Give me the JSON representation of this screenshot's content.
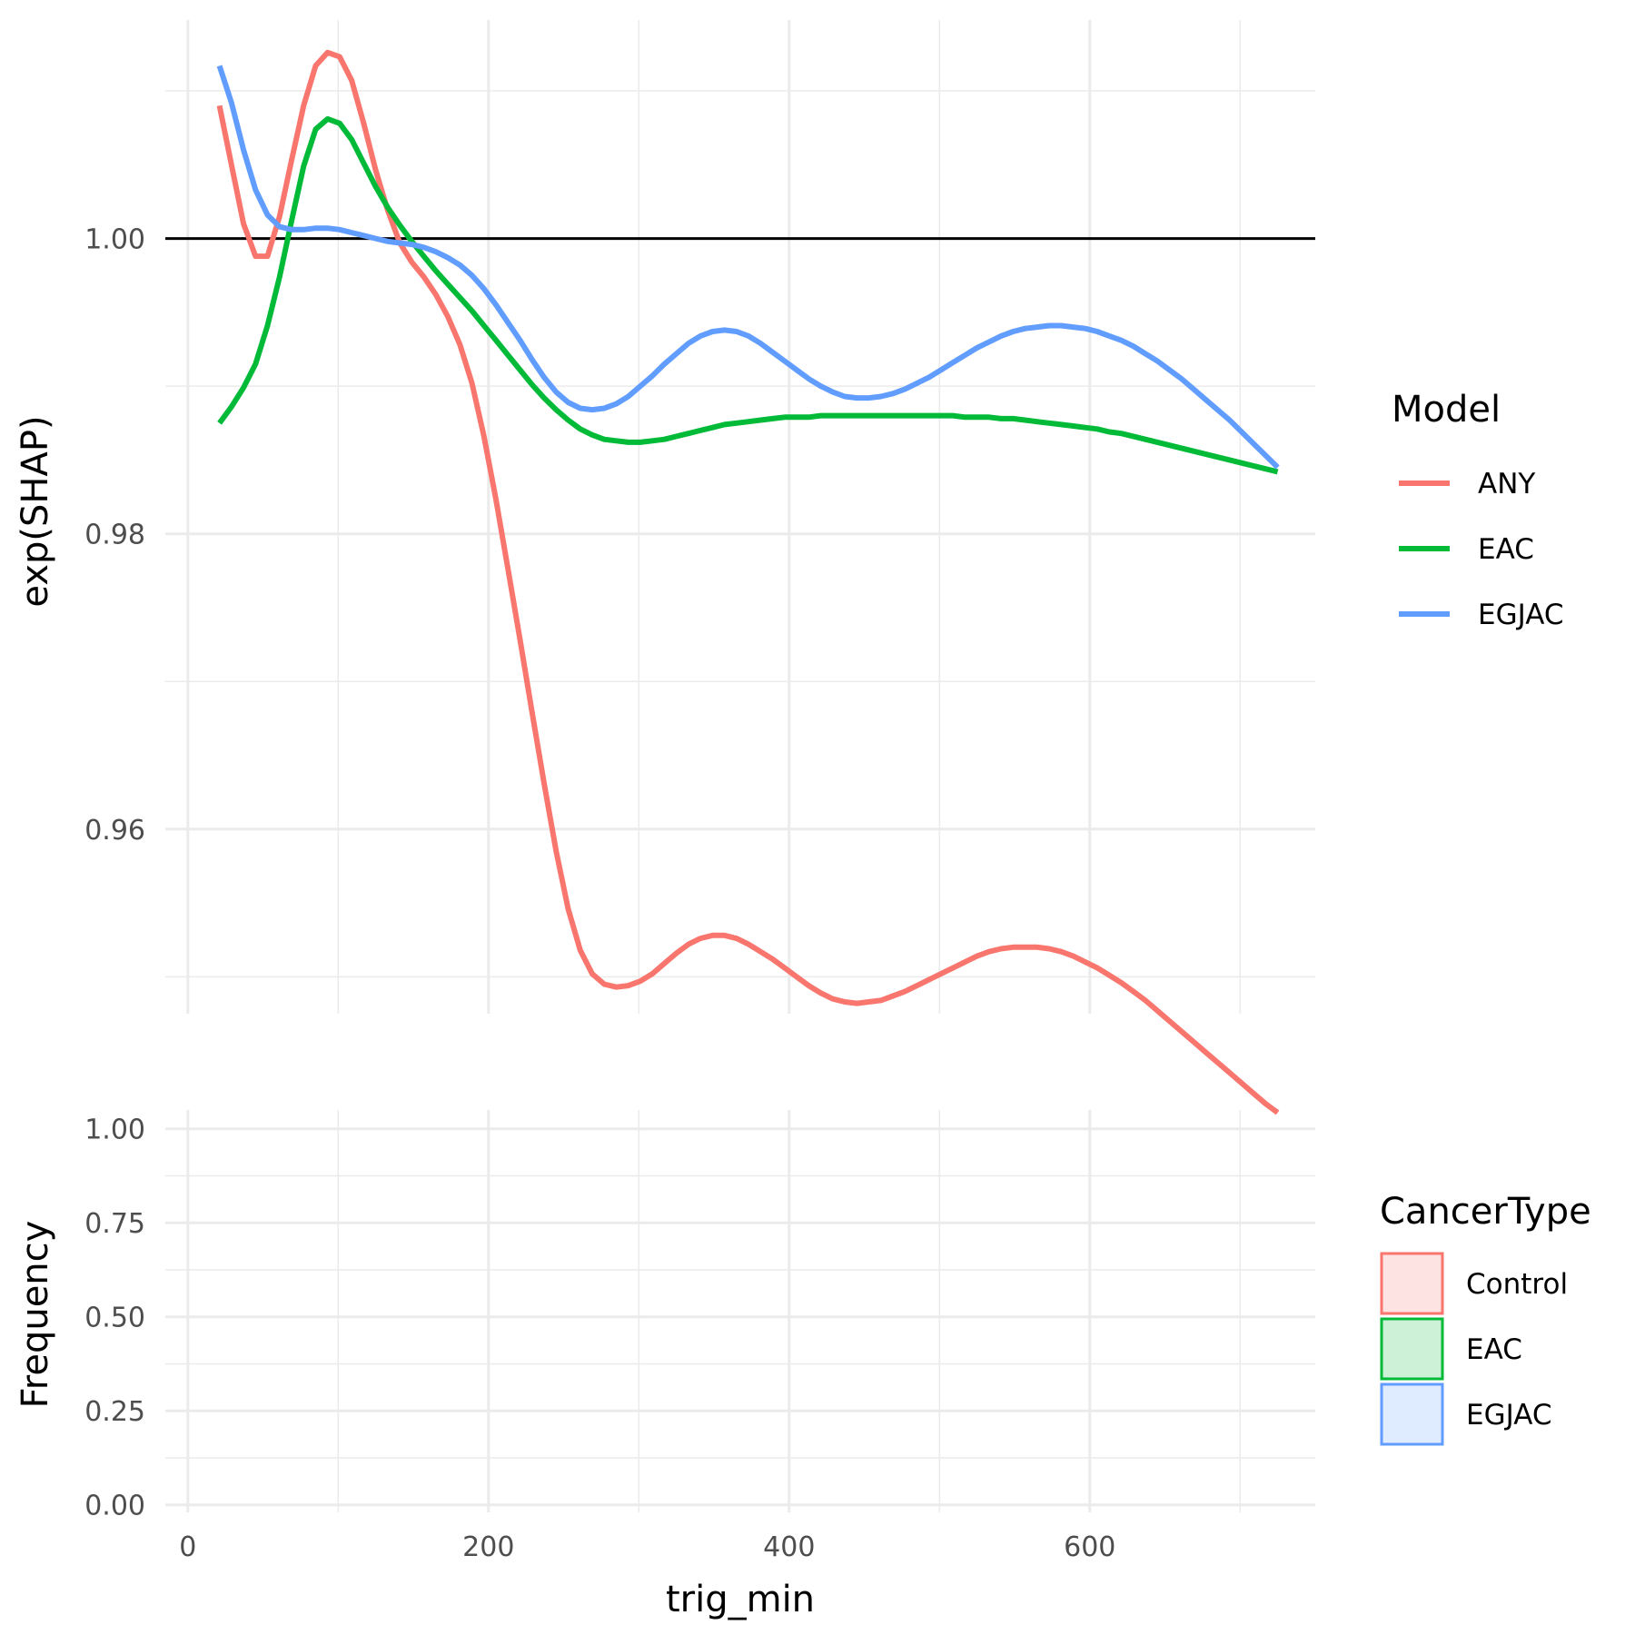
{
  "chart_data": [
    {
      "type": "line",
      "xlabel": "",
      "ylabel": "exp(SHAP)",
      "xlim": [
        -15,
        750
      ],
      "ylim": [
        0.9475,
        1.0148
      ],
      "x_major_ticks": [
        0,
        200,
        400,
        600
      ],
      "x_minor_ticks": [
        100,
        300,
        500,
        700
      ],
      "y_major_ticks": [
        0.96,
        0.98,
        1.0
      ],
      "y_tick_labels": [
        "0.96",
        "0.98",
        "1.00"
      ],
      "y_minor_ticks": [
        0.95,
        0.97,
        0.99,
        1.01
      ],
      "reference_line": 1.0,
      "grid": true,
      "legend": {
        "title": "Model",
        "position": "right"
      },
      "series": [
        {
          "name": "ANY",
          "color": "#F8766D",
          "x": [
            21,
            29,
            37,
            45,
            53,
            61,
            69,
            77,
            85,
            93,
            101,
            109,
            117,
            125,
            133,
            141,
            149,
            157,
            165,
            173,
            181,
            189,
            197,
            205,
            213,
            221,
            229,
            237,
            245,
            253,
            261,
            269,
            277,
            285,
            293,
            301,
            309,
            317,
            325,
            333,
            341,
            349,
            357,
            365,
            373,
            381,
            389,
            397,
            405,
            413,
            421,
            429,
            437,
            445,
            453,
            461,
            469,
            477,
            485,
            493,
            501,
            509,
            517,
            525,
            533,
            541,
            549,
            557,
            565,
            573,
            581,
            589,
            597,
            605,
            613,
            621,
            629,
            637,
            645,
            653,
            661,
            669,
            677,
            685,
            693,
            701,
            709,
            717,
            725
          ],
          "y": [
            1.009,
            1.005,
            1.001,
            0.9988,
            0.9988,
            1.0015,
            1.0053,
            1.009,
            1.0117,
            1.0126,
            1.0123,
            1.0107,
            1.0078,
            1.0046,
            1.0019,
            0.9997,
            0.9984,
            0.9974,
            0.9962,
            0.9947,
            0.9928,
            0.9902,
            0.9866,
            0.9823,
            0.9776,
            0.9728,
            0.9679,
            0.9631,
            0.9585,
            0.9546,
            0.9518,
            0.9502,
            0.9495,
            0.9493,
            0.9494,
            0.9497,
            0.9502,
            0.9509,
            0.9516,
            0.9522,
            0.9526,
            0.9528,
            0.9528,
            0.9526,
            0.9522,
            0.9517,
            0.9512,
            0.9506,
            0.95,
            0.9494,
            0.9489,
            0.9485,
            0.9483,
            0.9482,
            0.9483,
            0.9484,
            0.9487,
            0.949,
            0.9494,
            0.9498,
            0.9502,
            0.9506,
            0.951,
            0.9514,
            0.9517,
            0.9519,
            0.952,
            0.952,
            0.952,
            0.9519,
            0.9517,
            0.9514,
            0.951,
            0.9506,
            0.9501,
            0.9496,
            0.949,
            0.9484,
            0.9477,
            0.947,
            0.9463,
            0.9456,
            0.9449,
            0.9442,
            0.9435,
            0.9428,
            0.9421,
            0.9414,
            0.9408
          ]
        },
        {
          "name": "EAC",
          "color": "#00BA38",
          "x": [
            21,
            29,
            37,
            45,
            53,
            61,
            69,
            77,
            85,
            93,
            101,
            109,
            117,
            125,
            133,
            141,
            149,
            157,
            165,
            173,
            181,
            189,
            197,
            205,
            213,
            221,
            229,
            237,
            245,
            253,
            261,
            269,
            277,
            285,
            293,
            301,
            309,
            317,
            325,
            333,
            341,
            349,
            357,
            365,
            373,
            381,
            389,
            397,
            405,
            413,
            421,
            429,
            437,
            445,
            453,
            461,
            469,
            477,
            485,
            493,
            501,
            509,
            517,
            525,
            533,
            541,
            549,
            557,
            565,
            573,
            581,
            589,
            597,
            605,
            613,
            621,
            629,
            637,
            645,
            653,
            661,
            669,
            677,
            685,
            693,
            701,
            709,
            717,
            725
          ],
          "y": [
            0.9875,
            0.9886,
            0.9899,
            0.9915,
            0.9941,
            0.9974,
            1.0012,
            1.0049,
            1.0074,
            1.0081,
            1.0078,
            1.0067,
            1.0051,
            1.0035,
            1.0021,
            1.0009,
            0.9998,
            0.9988,
            0.9978,
            0.9969,
            0.996,
            0.9951,
            0.9941,
            0.9931,
            0.9921,
            0.9911,
            0.9901,
            0.9892,
            0.9884,
            0.9877,
            0.9871,
            0.9867,
            0.9864,
            0.9863,
            0.9862,
            0.9862,
            0.9863,
            0.9864,
            0.9866,
            0.9868,
            0.987,
            0.9872,
            0.9874,
            0.9875,
            0.9876,
            0.9877,
            0.9878,
            0.9879,
            0.9879,
            0.9879,
            0.988,
            0.988,
            0.988,
            0.988,
            0.988,
            0.988,
            0.988,
            0.988,
            0.988,
            0.988,
            0.988,
            0.988,
            0.9879,
            0.9879,
            0.9879,
            0.9878,
            0.9878,
            0.9877,
            0.9876,
            0.9875,
            0.9874,
            0.9873,
            0.9872,
            0.9871,
            0.9869,
            0.9868,
            0.9866,
            0.9864,
            0.9862,
            0.986,
            0.9858,
            0.9856,
            0.9854,
            0.9852,
            0.985,
            0.9848,
            0.9846,
            0.9844,
            0.9842
          ]
        },
        {
          "name": "EGJAC",
          "color": "#619CFF",
          "x": [
            21,
            29,
            37,
            45,
            53,
            61,
            69,
            77,
            85,
            93,
            101,
            109,
            117,
            125,
            133,
            141,
            149,
            157,
            165,
            173,
            181,
            189,
            197,
            205,
            213,
            221,
            229,
            237,
            245,
            253,
            261,
            269,
            277,
            285,
            293,
            301,
            309,
            317,
            325,
            333,
            341,
            349,
            357,
            365,
            373,
            381,
            389,
            397,
            405,
            413,
            421,
            429,
            437,
            445,
            453,
            461,
            469,
            477,
            485,
            493,
            501,
            509,
            517,
            525,
            533,
            541,
            549,
            557,
            565,
            573,
            581,
            589,
            597,
            605,
            613,
            621,
            629,
            637,
            645,
            653,
            661,
            669,
            677,
            685,
            693,
            701,
            709,
            717,
            725
          ],
          "y": [
            1.0117,
            1.0092,
            1.006,
            1.0033,
            1.0016,
            1.0008,
            1.0006,
            1.0006,
            1.0007,
            1.0007,
            1.0006,
            1.0004,
            1.0002,
            1.0,
            0.9998,
            0.9997,
            0.9996,
            0.9994,
            0.9991,
            0.9987,
            0.9982,
            0.9975,
            0.9966,
            0.9955,
            0.9943,
            0.9931,
            0.9918,
            0.9906,
            0.9896,
            0.9889,
            0.9885,
            0.9884,
            0.9885,
            0.9888,
            0.9893,
            0.99,
            0.9907,
            0.9915,
            0.9922,
            0.9929,
            0.9934,
            0.9937,
            0.9938,
            0.9937,
            0.9934,
            0.9929,
            0.9923,
            0.9917,
            0.9911,
            0.9905,
            0.99,
            0.9896,
            0.9893,
            0.9892,
            0.9892,
            0.9893,
            0.9895,
            0.9898,
            0.9902,
            0.9906,
            0.9911,
            0.9916,
            0.9921,
            0.9926,
            0.993,
            0.9934,
            0.9937,
            0.9939,
            0.994,
            0.9941,
            0.9941,
            0.994,
            0.9939,
            0.9937,
            0.9934,
            0.9931,
            0.9927,
            0.9922,
            0.9917,
            0.9911,
            0.9905,
            0.9898,
            0.9891,
            0.9884,
            0.9877,
            0.9869,
            0.9861,
            0.9853,
            0.9845
          ]
        }
      ]
    },
    {
      "type": "bar",
      "xlabel": "trig_min",
      "ylabel": "Frequency",
      "xlim": [
        -15,
        750
      ],
      "ylim": [
        -0.02,
        1.05
      ],
      "x_major_ticks": [
        0,
        200,
        400,
        600
      ],
      "x_tick_labels": [
        "0",
        "200",
        "400",
        "600"
      ],
      "x_minor_ticks": [
        100,
        300,
        500,
        700
      ],
      "y_major_ticks": [
        0.0,
        0.25,
        0.5,
        0.75,
        1.0
      ],
      "y_tick_labels": [
        "0.00",
        "0.25",
        "0.50",
        "0.75",
        "1.00"
      ],
      "y_minor_ticks": [
        0.125,
        0.375,
        0.625,
        0.875
      ],
      "grid": true,
      "legend": {
        "title": "CancerType",
        "position": "right",
        "items": [
          {
            "name": "Control",
            "color": "#F8766D",
            "fill": "#FDE4E2"
          },
          {
            "name": "EAC",
            "color": "#00BA38",
            "fill": "#CCF1D7"
          },
          {
            "name": "EGJAC",
            "color": "#619CFF",
            "fill": "#DFEBFF"
          }
        ]
      },
      "series": []
    }
  ]
}
